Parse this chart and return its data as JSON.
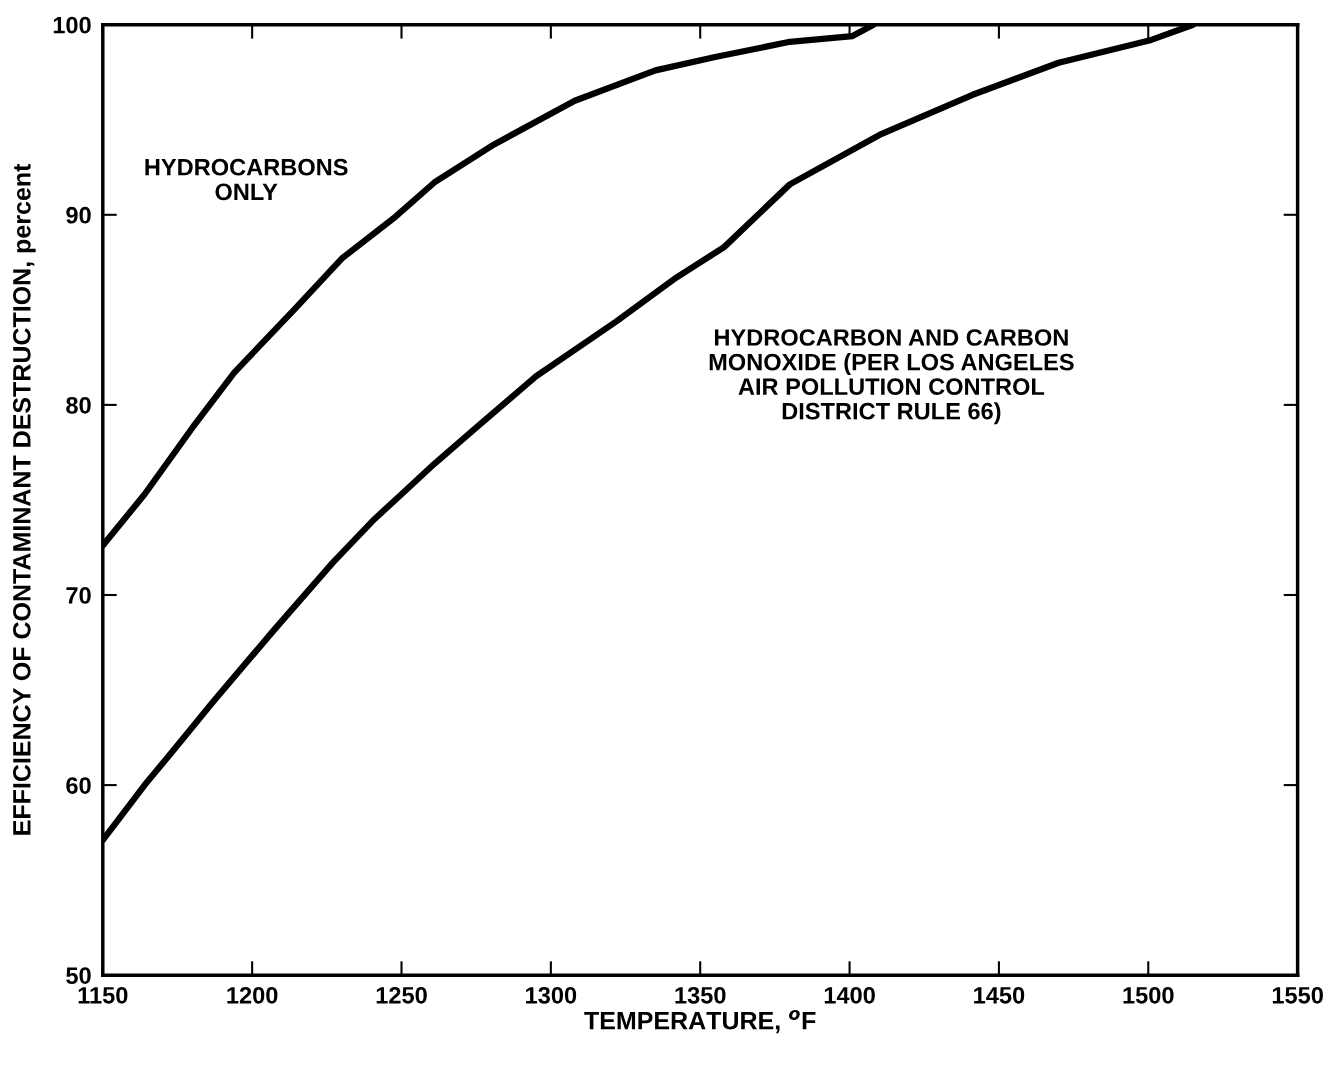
{
  "chart_data": {
    "type": "line",
    "xlabel": "TEMPERATURE, $^{o}$F",
    "ylabel": "EFFICIENCY OF CONTAMINANT DESTRUCTION, percent",
    "xlim": [
      1150,
      1550
    ],
    "ylim": [
      50,
      100
    ],
    "xticks": [
      1150,
      1200,
      1250,
      1300,
      1350,
      1400,
      1450,
      1500,
      1550
    ],
    "yticks": [
      50,
      60,
      70,
      80,
      90,
      100
    ],
    "grid": false,
    "legend": false,
    "marker": "none",
    "line_style": "solid",
    "series": [
      {
        "name": "HYDROCARBONS\nONLY",
        "color": "#000000",
        "x": [
          1150,
          1164,
          1180,
          1194,
          1214,
          1230,
          1248,
          1261,
          1281,
          1308,
          1335,
          1355,
          1380,
          1401,
          1408
        ],
        "values": [
          72.6,
          75.3,
          78.8,
          81.7,
          85.0,
          87.7,
          89.9,
          91.7,
          93.7,
          96.0,
          97.6,
          98.3,
          99.1,
          99.4,
          100
        ]
      },
      {
        "name": "HYDROCARBON AND CARBON\nMONOXIDE (PER LOS ANGELES\nAIR POLLUTION CONTROL\nDISTRICT RULE 66)",
        "color": "#000000",
        "x": [
          1150,
          1164,
          1174,
          1187,
          1207,
          1227,
          1241,
          1250,
          1261,
          1275,
          1295,
          1322,
          1342,
          1358,
          1380,
          1410,
          1441,
          1470,
          1501,
          1515
        ],
        "values": [
          57.1,
          60.0,
          61.9,
          64.4,
          68.1,
          71.7,
          74.0,
          75.3,
          76.9,
          78.8,
          81.5,
          84.4,
          86.7,
          88.3,
          91.6,
          94.2,
          96.3,
          98.0,
          99.2,
          100
        ]
      }
    ]
  }
}
